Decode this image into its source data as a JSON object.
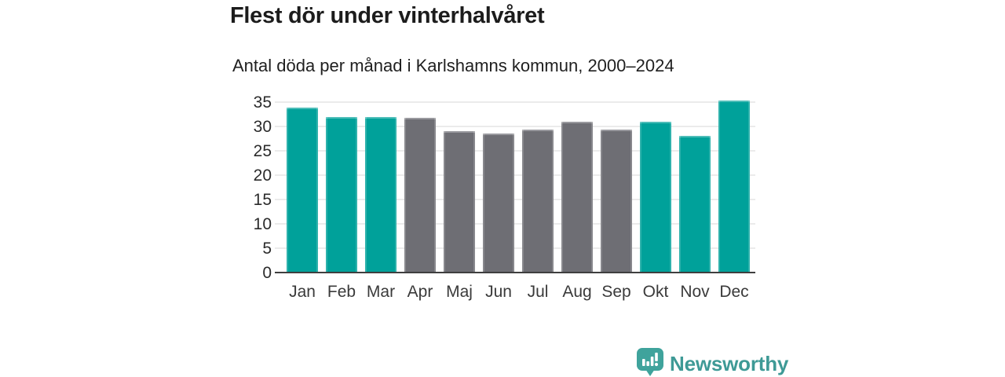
{
  "header": {
    "title": "Flest dör under vinterhalvåret",
    "subtitle": "Antal döda per månad i Karlshamns kommun, 2000–2024"
  },
  "chart_data": {
    "type": "bar",
    "title": "Flest dör under vinterhalvåret",
    "subtitle": "Antal döda per månad i Karlshamns kommun, 2000–2024",
    "categories": [
      "Jan",
      "Feb",
      "Mar",
      "Apr",
      "Maj",
      "Jun",
      "Jul",
      "Aug",
      "Sep",
      "Okt",
      "Nov",
      "Dec"
    ],
    "values": [
      33.8,
      32.0,
      32.0,
      31.7,
      29.0,
      28.5,
      29.4,
      30.9,
      29.3,
      31.0,
      28.1,
      35.4
    ],
    "highlight_winter_months": [
      true,
      true,
      true,
      false,
      false,
      false,
      false,
      false,
      false,
      true,
      true,
      true
    ],
    "xlabel": "",
    "ylabel": "",
    "ylim": [
      0,
      35
    ],
    "yticks": [
      0,
      5,
      10,
      15,
      20,
      25,
      30,
      35
    ],
    "grid": true,
    "legend": "none",
    "colors": {
      "winter_bar": "#00A19A",
      "summer_bar": "#6E6E74",
      "gridline": "#ebebeb",
      "axis_line": "#3f3f3f",
      "tick_label": "#2b2b2b",
      "month_label": "#3a3a3a"
    }
  },
  "footer": {
    "brand": "Newsworthy",
    "brand_text_color": "#3E9A96",
    "logo_icon": "newsworthy-speech-bubble-barchart-icon",
    "logo_color": "#3FA39C"
  }
}
